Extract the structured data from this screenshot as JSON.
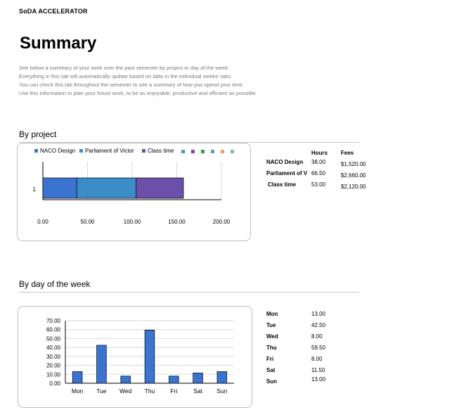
{
  "brand": "SoDA ACCELERATOR",
  "page_title": "Summary",
  "intro_lines": [
    "See below a summary of your work over the past semester by project or day of the week.",
    "Everything in this tab will automatically update based on data in the individual weeks' tabs.",
    "You can check this tab throughout the semester to see a summary of how you spend your time.",
    "Use this information to plan your future work, to be as enjoyable, productive and efficient as possible."
  ],
  "by_project": {
    "heading": "By project",
    "table": {
      "col_hours": "Hours",
      "col_fees": "Fees",
      "rows": [
        {
          "name": "NACO Design",
          "hours": "38.00",
          "fees": "$1,520.00"
        },
        {
          "name": "Parliament of V",
          "hours": "66.50",
          "fees": "$2,660.00"
        },
        {
          "name": "Class time",
          "hours": "53.00",
          "fees": "$2,120.00"
        }
      ]
    }
  },
  "by_day": {
    "heading": "By day of the week",
    "table": {
      "rows": [
        {
          "day": "Mon",
          "hours": "13.00"
        },
        {
          "day": "Tue",
          "hours": "42.50"
        },
        {
          "day": "Wed",
          "hours": "8.00"
        },
        {
          "day": "Thu",
          "hours": "59.50"
        },
        {
          "day": "Fri",
          "hours": "8.00"
        },
        {
          "day": "Sat",
          "hours": "11.50"
        },
        {
          "day": "Sun",
          "hours": "13.00"
        }
      ]
    }
  },
  "chart_data": [
    {
      "type": "bar",
      "orientation": "horizontal",
      "stacked": true,
      "categories": [
        "1"
      ],
      "series": [
        {
          "name": "NACO Design",
          "values": [
            38.0
          ],
          "color": "#3a74d0"
        },
        {
          "name": "Parliament of Victor",
          "values": [
            66.5
          ],
          "color": "#3d8cca"
        },
        {
          "name": "Class time",
          "values": [
            53.0
          ],
          "color": "#6b4fa8"
        }
      ],
      "legend_extra_swatches": [
        "#3d9fc4",
        "#8e3aa8",
        "#3aa048",
        "#5fa0b4",
        "#e8a070",
        "#8fb89a"
      ],
      "x_ticks": [
        "0.00",
        "50.00",
        "100.00",
        "150.00",
        "200.00"
      ],
      "xlim": [
        0,
        200
      ],
      "legend_position": "top",
      "grid": true
    },
    {
      "type": "bar",
      "categories": [
        "Mon",
        "Tue",
        "Wed",
        "Thu",
        "Fri",
        "Sat",
        "Sun"
      ],
      "values": [
        13.0,
        42.5,
        8.0,
        59.5,
        8.0,
        11.5,
        13.0
      ],
      "color": "#3a74d0",
      "y_ticks": [
        "0.00",
        "10.00",
        "20.00",
        "30.00",
        "40.00",
        "50.00",
        "60.00",
        "70.00"
      ],
      "ylim": [
        0,
        70
      ],
      "grid": true
    }
  ]
}
